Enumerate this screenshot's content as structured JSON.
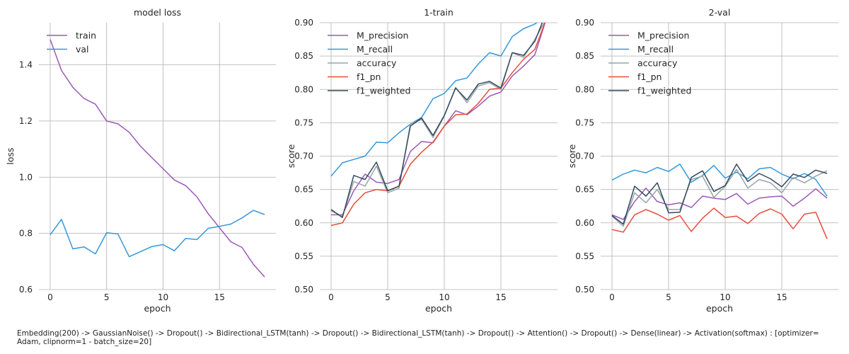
{
  "chart_data": [
    {
      "type": "line",
      "title": "model loss",
      "xlabel": "epoch",
      "ylabel": "loss",
      "xlim": [
        -1,
        20
      ],
      "ylim": [
        0.6,
        1.55
      ],
      "xticks": [
        0,
        5,
        10,
        15
      ],
      "yticks": [
        0.6,
        0.8,
        1.0,
        1.2,
        1.4
      ],
      "ytick_labels": [
        "0.6",
        "0.8",
        "1.0",
        "1.2",
        "1.4"
      ],
      "grid": true,
      "legend_position": "top-left",
      "x": [
        0,
        1,
        2,
        3,
        4,
        5,
        6,
        7,
        8,
        9,
        10,
        11,
        12,
        13,
        14,
        15,
        16,
        17,
        18,
        19
      ],
      "series": [
        {
          "name": "train",
          "color": "#9b59b6",
          "values": [
            1.49,
            1.38,
            1.32,
            1.28,
            1.26,
            1.2,
            1.19,
            1.16,
            1.11,
            1.07,
            1.03,
            0.99,
            0.97,
            0.93,
            0.87,
            0.82,
            0.77,
            0.75,
            0.69,
            0.645
          ]
        },
        {
          "name": "val",
          "color": "#3498db",
          "values": [
            0.795,
            0.85,
            0.745,
            0.752,
            0.727,
            0.802,
            0.798,
            0.717,
            0.735,
            0.753,
            0.76,
            0.738,
            0.782,
            0.778,
            0.818,
            0.825,
            0.833,
            0.855,
            0.882,
            0.867
          ]
        }
      ]
    },
    {
      "type": "line",
      "title": "1-train",
      "xlabel": "epoch",
      "ylabel": "score",
      "xlim": [
        -1,
        20
      ],
      "ylim": [
        0.5,
        0.9
      ],
      "xticks": [
        0,
        5,
        10,
        15
      ],
      "yticks": [
        0.5,
        0.55,
        0.6,
        0.65,
        0.7,
        0.75,
        0.8,
        0.85,
        0.9
      ],
      "ytick_labels": [
        "0.50",
        "0.55",
        "0.60",
        "0.65",
        "0.70",
        "0.75",
        "0.80",
        "0.85",
        "0.90"
      ],
      "grid": true,
      "legend_position": "top-left",
      "x": [
        0,
        1,
        2,
        3,
        4,
        5,
        6,
        7,
        8,
        9,
        10,
        11,
        12,
        13,
        14,
        15,
        16,
        17,
        18,
        19
      ],
      "series": [
        {
          "name": "M_precision",
          "color": "#9b59b6",
          "values": [
            0.612,
            0.612,
            0.648,
            0.673,
            0.661,
            0.659,
            0.665,
            0.707,
            0.722,
            0.72,
            0.745,
            0.768,
            0.762,
            0.775,
            0.79,
            0.796,
            0.82,
            0.835,
            0.852,
            0.905
          ]
        },
        {
          "name": "M_recall",
          "color": "#3498db",
          "values": [
            0.67,
            0.69,
            0.695,
            0.7,
            0.721,
            0.72,
            0.735,
            0.748,
            0.758,
            0.786,
            0.794,
            0.813,
            0.817,
            0.838,
            0.855,
            0.85,
            0.879,
            0.891,
            0.898,
            0.91
          ]
        },
        {
          "name": "accuracy",
          "color": "#95a5a6",
          "values": [
            0.618,
            0.61,
            0.662,
            0.655,
            0.685,
            0.645,
            0.652,
            0.748,
            0.755,
            0.728,
            0.76,
            0.803,
            0.78,
            0.805,
            0.81,
            0.8,
            0.855,
            0.848,
            0.875,
            0.905
          ]
        },
        {
          "name": "f1_pn",
          "color": "#e74c3c",
          "values": [
            0.596,
            0.6,
            0.628,
            0.645,
            0.65,
            0.648,
            0.655,
            0.688,
            0.706,
            0.721,
            0.745,
            0.762,
            0.763,
            0.779,
            0.8,
            0.802,
            0.825,
            0.845,
            0.86,
            0.905
          ]
        },
        {
          "name": "f1_weighted",
          "color": "#34495e",
          "values": [
            0.62,
            0.608,
            0.671,
            0.665,
            0.691,
            0.648,
            0.655,
            0.745,
            0.757,
            0.731,
            0.761,
            0.802,
            0.784,
            0.808,
            0.812,
            0.802,
            0.855,
            0.851,
            0.872,
            0.915
          ]
        }
      ]
    },
    {
      "type": "line",
      "title": "2-val",
      "xlabel": "epoch",
      "ylabel": "score",
      "xlim": [
        -1,
        20
      ],
      "ylim": [
        0.5,
        0.9
      ],
      "xticks": [
        0,
        5,
        10,
        15
      ],
      "yticks": [
        0.5,
        0.55,
        0.6,
        0.65,
        0.7,
        0.75,
        0.8,
        0.85,
        0.9
      ],
      "ytick_labels": [
        "0.50",
        "0.55",
        "0.60",
        "0.65",
        "0.70",
        "0.75",
        "0.80",
        "0.85",
        "0.90"
      ],
      "grid": true,
      "legend_position": "top-left",
      "x": [
        0,
        1,
        2,
        3,
        4,
        5,
        6,
        7,
        8,
        9,
        10,
        11,
        12,
        13,
        14,
        15,
        16,
        17,
        18,
        19
      ],
      "series": [
        {
          "name": "M_precision",
          "color": "#9b59b6",
          "values": [
            0.612,
            0.605,
            0.632,
            0.652,
            0.632,
            0.627,
            0.63,
            0.623,
            0.64,
            0.637,
            0.635,
            0.644,
            0.628,
            0.637,
            0.639,
            0.64,
            0.625,
            0.637,
            0.651,
            0.637
          ]
        },
        {
          "name": "M_recall",
          "color": "#3498db",
          "values": [
            0.664,
            0.673,
            0.679,
            0.675,
            0.683,
            0.677,
            0.688,
            0.661,
            0.671,
            0.686,
            0.667,
            0.676,
            0.666,
            0.681,
            0.683,
            0.673,
            0.666,
            0.674,
            0.665,
            0.64
          ]
        },
        {
          "name": "accuracy",
          "color": "#95a5a6",
          "values": [
            0.61,
            0.595,
            0.645,
            0.63,
            0.65,
            0.62,
            0.62,
            0.665,
            0.67,
            0.638,
            0.655,
            0.68,
            0.652,
            0.665,
            0.66,
            0.645,
            0.668,
            0.66,
            0.67,
            0.678
          ]
        },
        {
          "name": "f1_pn",
          "color": "#e74c3c",
          "values": [
            0.59,
            0.586,
            0.612,
            0.62,
            0.613,
            0.604,
            0.611,
            0.587,
            0.607,
            0.622,
            0.608,
            0.61,
            0.599,
            0.614,
            0.621,
            0.613,
            0.591,
            0.613,
            0.616,
            0.576
          ]
        },
        {
          "name": "f1_weighted",
          "color": "#34495e",
          "values": [
            0.611,
            0.598,
            0.655,
            0.64,
            0.66,
            0.615,
            0.616,
            0.668,
            0.678,
            0.647,
            0.656,
            0.688,
            0.662,
            0.674,
            0.666,
            0.654,
            0.673,
            0.668,
            0.679,
            0.674
          ]
        }
      ]
    }
  ],
  "caption": "Embedding(200) -> GaussianNoise() -> Dropout() -> Bidirectional_LSTM(tanh) -> Dropout() -> Bidirectional_LSTM(tanh) -> Dropout() -> Attention() -> Dropout() -> Dense(linear) -> Activation(softmax) : [optimizer= Adam, clipnorm=1 - batch_size=20]"
}
